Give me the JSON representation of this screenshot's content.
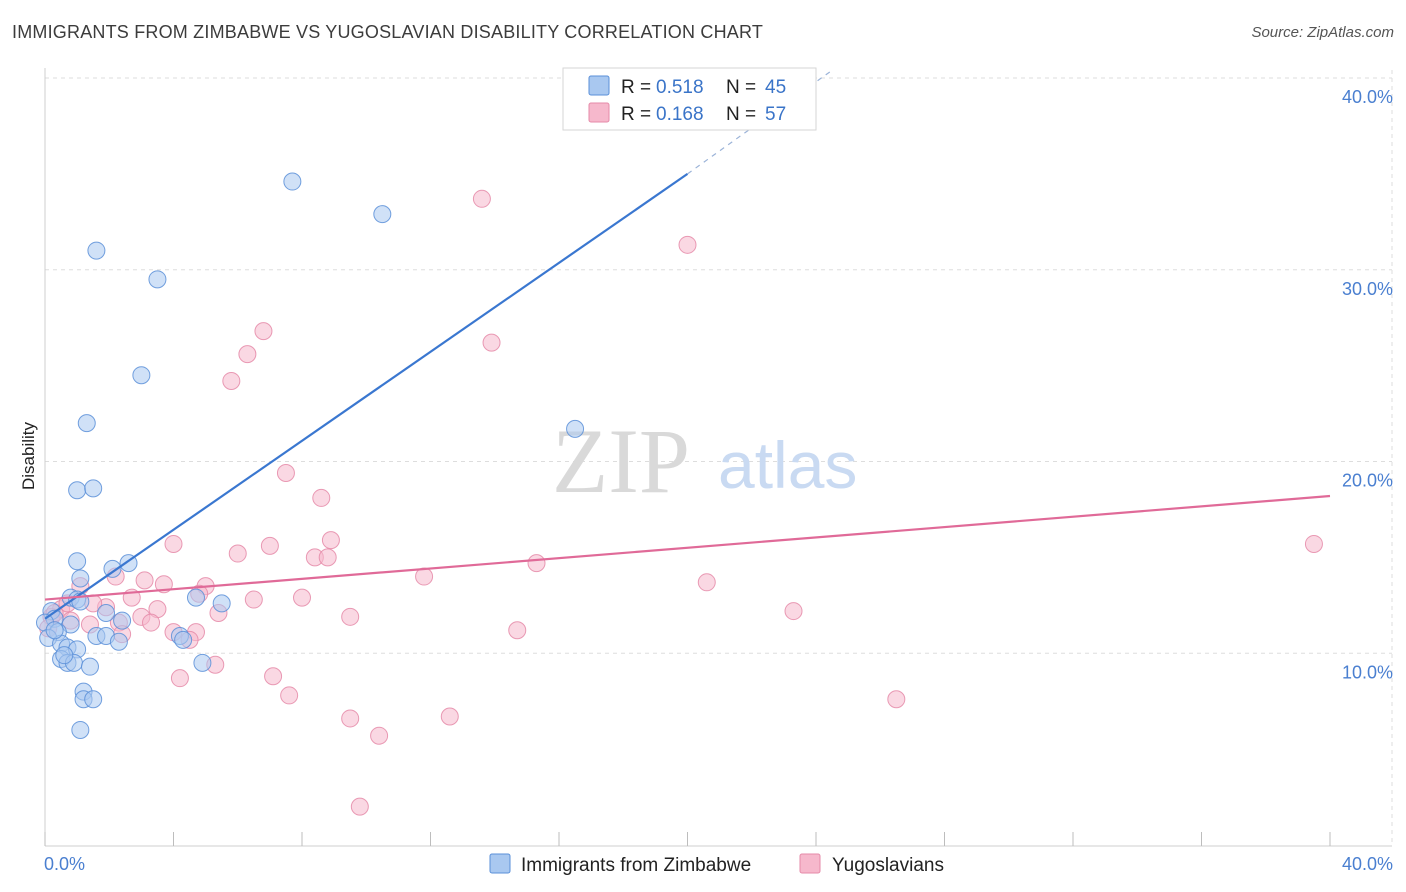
{
  "title": "IMMIGRANTS FROM ZIMBABWE VS YUGOSLAVIAN DISABILITY CORRELATION CHART",
  "source": "Source: ZipAtlas.com",
  "watermark": {
    "zip": "ZIP",
    "atlas": "atlas"
  },
  "colors": {
    "blue_fill": "#a9c8f0",
    "blue_stroke": "#5a8fd8",
    "blue_line": "#3a77d0",
    "pink_fill": "#f6b8cc",
    "pink_stroke": "#e58aa8",
    "pink_line": "#e06a98",
    "grid": "#dddddd",
    "axis_text": "#4a7fd0"
  },
  "legend": {
    "rows": [
      {
        "r_label": "R = ",
        "r_value": "0.518",
        "n_label": "N = ",
        "n_value": "45"
      },
      {
        "r_label": "R = ",
        "r_value": "0.168",
        "n_label": "N = ",
        "n_value": "57"
      }
    ]
  },
  "chart_data": {
    "type": "scatter",
    "title": "IMMIGRANTS FROM ZIMBABWE VS YUGOSLAVIAN DISABILITY CORRELATION CHART",
    "xlabel": "",
    "ylabel": "Disability",
    "xlim": [
      0,
      40
    ],
    "ylim": [
      0,
      40
    ],
    "x_tick_labels": [
      "0.0%",
      "40.0%"
    ],
    "y_ticks": [
      {
        "value": 10,
        "label": "10.0%"
      },
      {
        "value": 20,
        "label": "20.0%"
      },
      {
        "value": 30,
        "label": "30.0%"
      },
      {
        "value": 40,
        "label": "40.0%"
      }
    ],
    "series": [
      {
        "name": "Immigrants from Zimbabwe",
        "R": 0.518,
        "N": 45,
        "trend": {
          "x0": 0.0,
          "y0": 11.8,
          "x1": 20.0,
          "y1": 35.0,
          "dash_x1": 24.5,
          "dash_y1": 40.4
        },
        "points": [
          [
            7.7,
            34.6
          ],
          [
            10.5,
            32.9
          ],
          [
            1.6,
            31.0
          ],
          [
            3.5,
            29.5
          ],
          [
            3.0,
            24.5
          ],
          [
            1.3,
            22.0
          ],
          [
            16.5,
            21.7
          ],
          [
            1.0,
            18.5
          ],
          [
            1.5,
            18.6
          ],
          [
            1.0,
            14.8
          ],
          [
            2.6,
            14.7
          ],
          [
            2.1,
            14.4
          ],
          [
            1.1,
            13.9
          ],
          [
            0.8,
            12.9
          ],
          [
            1.0,
            12.8
          ],
          [
            4.7,
            12.9
          ],
          [
            5.5,
            12.6
          ],
          [
            0.2,
            12.2
          ],
          [
            0.3,
            11.8
          ],
          [
            0.0,
            11.6
          ],
          [
            0.8,
            11.5
          ],
          [
            1.9,
            12.1
          ],
          [
            2.4,
            11.7
          ],
          [
            0.4,
            11.1
          ],
          [
            0.1,
            10.8
          ],
          [
            0.5,
            10.5
          ],
          [
            0.7,
            10.3
          ],
          [
            1.0,
            10.2
          ],
          [
            1.6,
            10.9
          ],
          [
            1.9,
            10.9
          ],
          [
            2.3,
            10.6
          ],
          [
            4.2,
            10.9
          ],
          [
            4.3,
            10.7
          ],
          [
            0.5,
            9.7
          ],
          [
            0.7,
            9.5
          ],
          [
            0.9,
            9.5
          ],
          [
            1.4,
            9.3
          ],
          [
            4.9,
            9.5
          ],
          [
            1.2,
            8.0
          ],
          [
            1.2,
            7.6
          ],
          [
            1.5,
            7.6
          ],
          [
            1.1,
            6.0
          ],
          [
            0.3,
            11.2
          ],
          [
            0.6,
            9.9
          ],
          [
            1.1,
            12.7
          ]
        ]
      },
      {
        "name": "Yugoslavians",
        "R": 0.168,
        "N": 57,
        "trend": {
          "x0": 0.0,
          "y0": 12.8,
          "x1": 40.0,
          "y1": 18.2
        },
        "points": [
          [
            13.6,
            33.7
          ],
          [
            20.0,
            31.3
          ],
          [
            6.8,
            26.8
          ],
          [
            6.3,
            25.6
          ],
          [
            5.8,
            24.2
          ],
          [
            13.9,
            26.2
          ],
          [
            7.5,
            19.4
          ],
          [
            8.6,
            18.1
          ],
          [
            8.9,
            15.9
          ],
          [
            4.0,
            15.7
          ],
          [
            6.0,
            15.2
          ],
          [
            7.0,
            15.6
          ],
          [
            8.4,
            15.0
          ],
          [
            8.8,
            15.0
          ],
          [
            15.3,
            14.7
          ],
          [
            39.5,
            15.7
          ],
          [
            2.2,
            14.0
          ],
          [
            3.1,
            13.8
          ],
          [
            3.7,
            13.6
          ],
          [
            5.0,
            13.5
          ],
          [
            11.8,
            14.0
          ],
          [
            20.6,
            13.7
          ],
          [
            1.1,
            13.5
          ],
          [
            4.8,
            13.1
          ],
          [
            2.7,
            12.9
          ],
          [
            6.5,
            12.8
          ],
          [
            8.0,
            12.9
          ],
          [
            3.5,
            12.3
          ],
          [
            23.3,
            12.2
          ],
          [
            0.5,
            12.3
          ],
          [
            1.9,
            12.4
          ],
          [
            3.0,
            11.9
          ],
          [
            5.4,
            12.1
          ],
          [
            9.5,
            11.9
          ],
          [
            0.2,
            11.9
          ],
          [
            0.8,
            11.7
          ],
          [
            1.4,
            11.5
          ],
          [
            2.3,
            11.6
          ],
          [
            3.3,
            11.6
          ],
          [
            2.4,
            11.0
          ],
          [
            4.0,
            11.1
          ],
          [
            4.7,
            11.1
          ],
          [
            14.7,
            11.2
          ],
          [
            4.5,
            10.7
          ],
          [
            0.1,
            11.3
          ],
          [
            5.3,
            9.4
          ],
          [
            7.1,
            8.8
          ],
          [
            4.2,
            8.7
          ],
          [
            7.6,
            7.8
          ],
          [
            26.5,
            7.6
          ],
          [
            9.5,
            6.6
          ],
          [
            12.6,
            6.7
          ],
          [
            10.4,
            5.7
          ],
          [
            9.8,
            2.0
          ],
          [
            0.3,
            12.1
          ],
          [
            0.7,
            12.6
          ],
          [
            1.5,
            12.6
          ]
        ]
      }
    ],
    "legend_position": "top-center",
    "bottom_legend": [
      "Immigrants from Zimbabwe",
      "Yugoslavians"
    ]
  }
}
